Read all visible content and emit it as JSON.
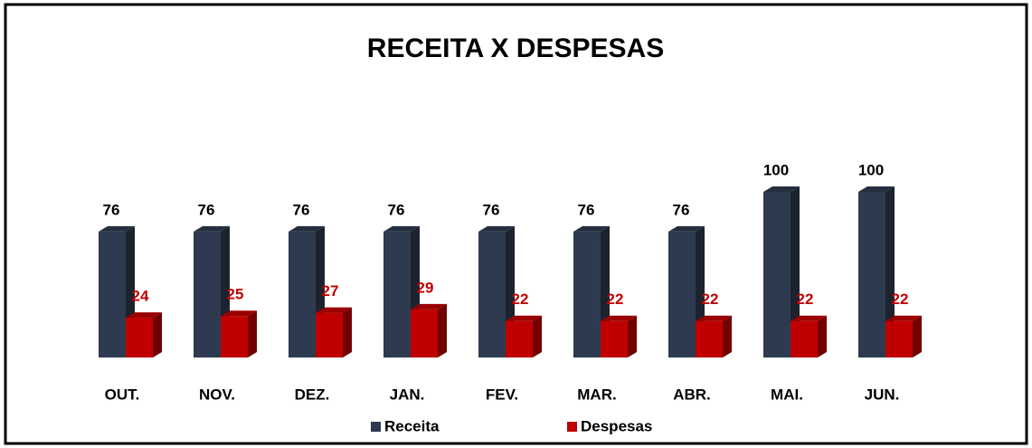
{
  "chart_data": {
    "type": "bar3d",
    "title": "RECEITA  X DESPESAS",
    "categories": [
      "OUT.",
      "NOV.",
      "DEZ.",
      "JAN.",
      "FEV.",
      "MAR.",
      "ABR.",
      "MAI.",
      "JUN."
    ],
    "series": [
      {
        "name": "Receita",
        "color": "#2e3a4f",
        "values": [
          76,
          76,
          76,
          76,
          76,
          76,
          76,
          100,
          100
        ]
      },
      {
        "name": "Despesas",
        "color": "#c00000",
        "values": [
          24,
          25,
          27,
          29,
          22,
          22,
          22,
          22,
          22
        ]
      }
    ]
  }
}
